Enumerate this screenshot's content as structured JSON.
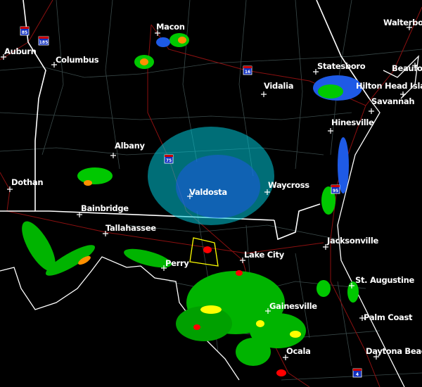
{
  "map": {
    "type": "weather radar reflectivity",
    "colors": {
      "background": "#000000",
      "light": "#00e5e5",
      "blue": "#0000f0",
      "green": "#00c800",
      "dark_green": "#009000",
      "yellow": "#ffff00",
      "orange": "#ff9000",
      "red": "#ff0000",
      "warning_polygon": "#ffff00"
    },
    "cities": [
      {
        "name": "Macon"
      },
      {
        "name": "Auburn"
      },
      {
        "name": "Columbus"
      },
      {
        "name": "Walterboro"
      },
      {
        "name": "Beaufort"
      },
      {
        "name": "Statesboro"
      },
      {
        "name": "Vidalia"
      },
      {
        "name": "Hilton Head Island"
      },
      {
        "name": "Savannah"
      },
      {
        "name": "Hinesville"
      },
      {
        "name": "Albany"
      },
      {
        "name": "Dothan"
      },
      {
        "name": "Waycross"
      },
      {
        "name": "Bainbridge"
      },
      {
        "name": "Valdosta"
      },
      {
        "name": "Tallahassee"
      },
      {
        "name": "Jacksonville"
      },
      {
        "name": "Lake City"
      },
      {
        "name": "Perry"
      },
      {
        "name": "St. Augustine"
      },
      {
        "name": "Gainesville"
      },
      {
        "name": "Palm Coast"
      },
      {
        "name": "Ocala"
      },
      {
        "name": "Daytona Beach"
      }
    ],
    "interstates": [
      {
        "number": "85"
      },
      {
        "number": "185"
      },
      {
        "number": "16"
      },
      {
        "number": "75"
      },
      {
        "number": "95"
      },
      {
        "number": "4"
      }
    ]
  }
}
